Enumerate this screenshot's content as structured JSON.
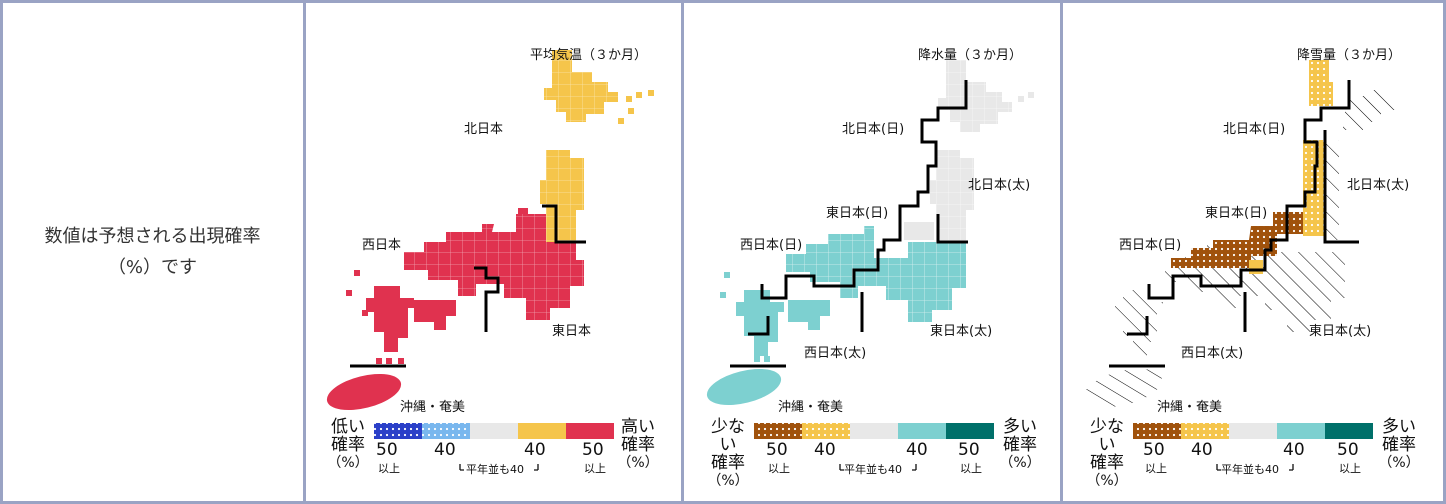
{
  "note": {
    "line1": "数値は予想される出現確率",
    "line2": "（%）です"
  },
  "colors": {
    "border": "#9aa3c4",
    "grid": "#dcdcdc",
    "normal": "#e8e8e8"
  },
  "panels": [
    {
      "id": "temperature",
      "title": "平均気温（３か月）",
      "regions": {
        "north": "北日本",
        "west": "西日本",
        "east": "東日本",
        "okinawa": "沖縄・奄美"
      },
      "legend": {
        "left_label": [
          "低い",
          "確率"
        ],
        "right_label": [
          "高い",
          "確率"
        ],
        "unit": "（%）",
        "colors": [
          "#2a3fc8",
          "#79b7ee",
          "#e8e8e8",
          "#f5c54b",
          "#e0324f"
        ],
        "num_50": "50",
        "num_40": "40",
        "ijo": "以上",
        "normal_note": "平年並も40"
      }
    },
    {
      "id": "precipitation",
      "title": "降水量（３か月）",
      "regions": {
        "north_japan_sea": "北日本(日)",
        "north_pacific": "北日本(太)",
        "east_japan_sea": "東日本(日)",
        "west_japan_sea": "西日本(日)",
        "west_pacific": "西日本(太)",
        "east_pacific": "東日本(太)",
        "okinawa": "沖縄・奄美"
      },
      "legend": {
        "left_label": [
          "少ない",
          "確率"
        ],
        "right_label": [
          "多い",
          "確率"
        ],
        "unit": "（%）",
        "colors": [
          "#a0520c",
          "#f5c54b",
          "#e8e8e8",
          "#7dd0d0",
          "#00706a"
        ],
        "num_50": "50",
        "num_40": "40",
        "ijo": "以上",
        "normal_note": "平年並も40"
      }
    },
    {
      "id": "snowfall",
      "title": "降雪量（３か月）",
      "regions": {
        "north_japan_sea": "北日本(日)",
        "north_pacific": "北日本(太)",
        "east_japan_sea": "東日本(日)",
        "west_japan_sea": "西日本(日)",
        "west_pacific": "西日本(太)",
        "east_pacific": "東日本(太)",
        "okinawa": "沖縄・奄美"
      },
      "legend": {
        "left_label": [
          "少ない",
          "確率"
        ],
        "right_label": [
          "多い",
          "確率"
        ],
        "unit": "（%）",
        "colors": [
          "#a0520c",
          "#f5c54b",
          "#e8e8e8",
          "#7dd0d0",
          "#00706a"
        ],
        "num_50": "50",
        "num_40": "40",
        "ijo": "以上",
        "normal_note": "平年並も40"
      }
    }
  ]
}
